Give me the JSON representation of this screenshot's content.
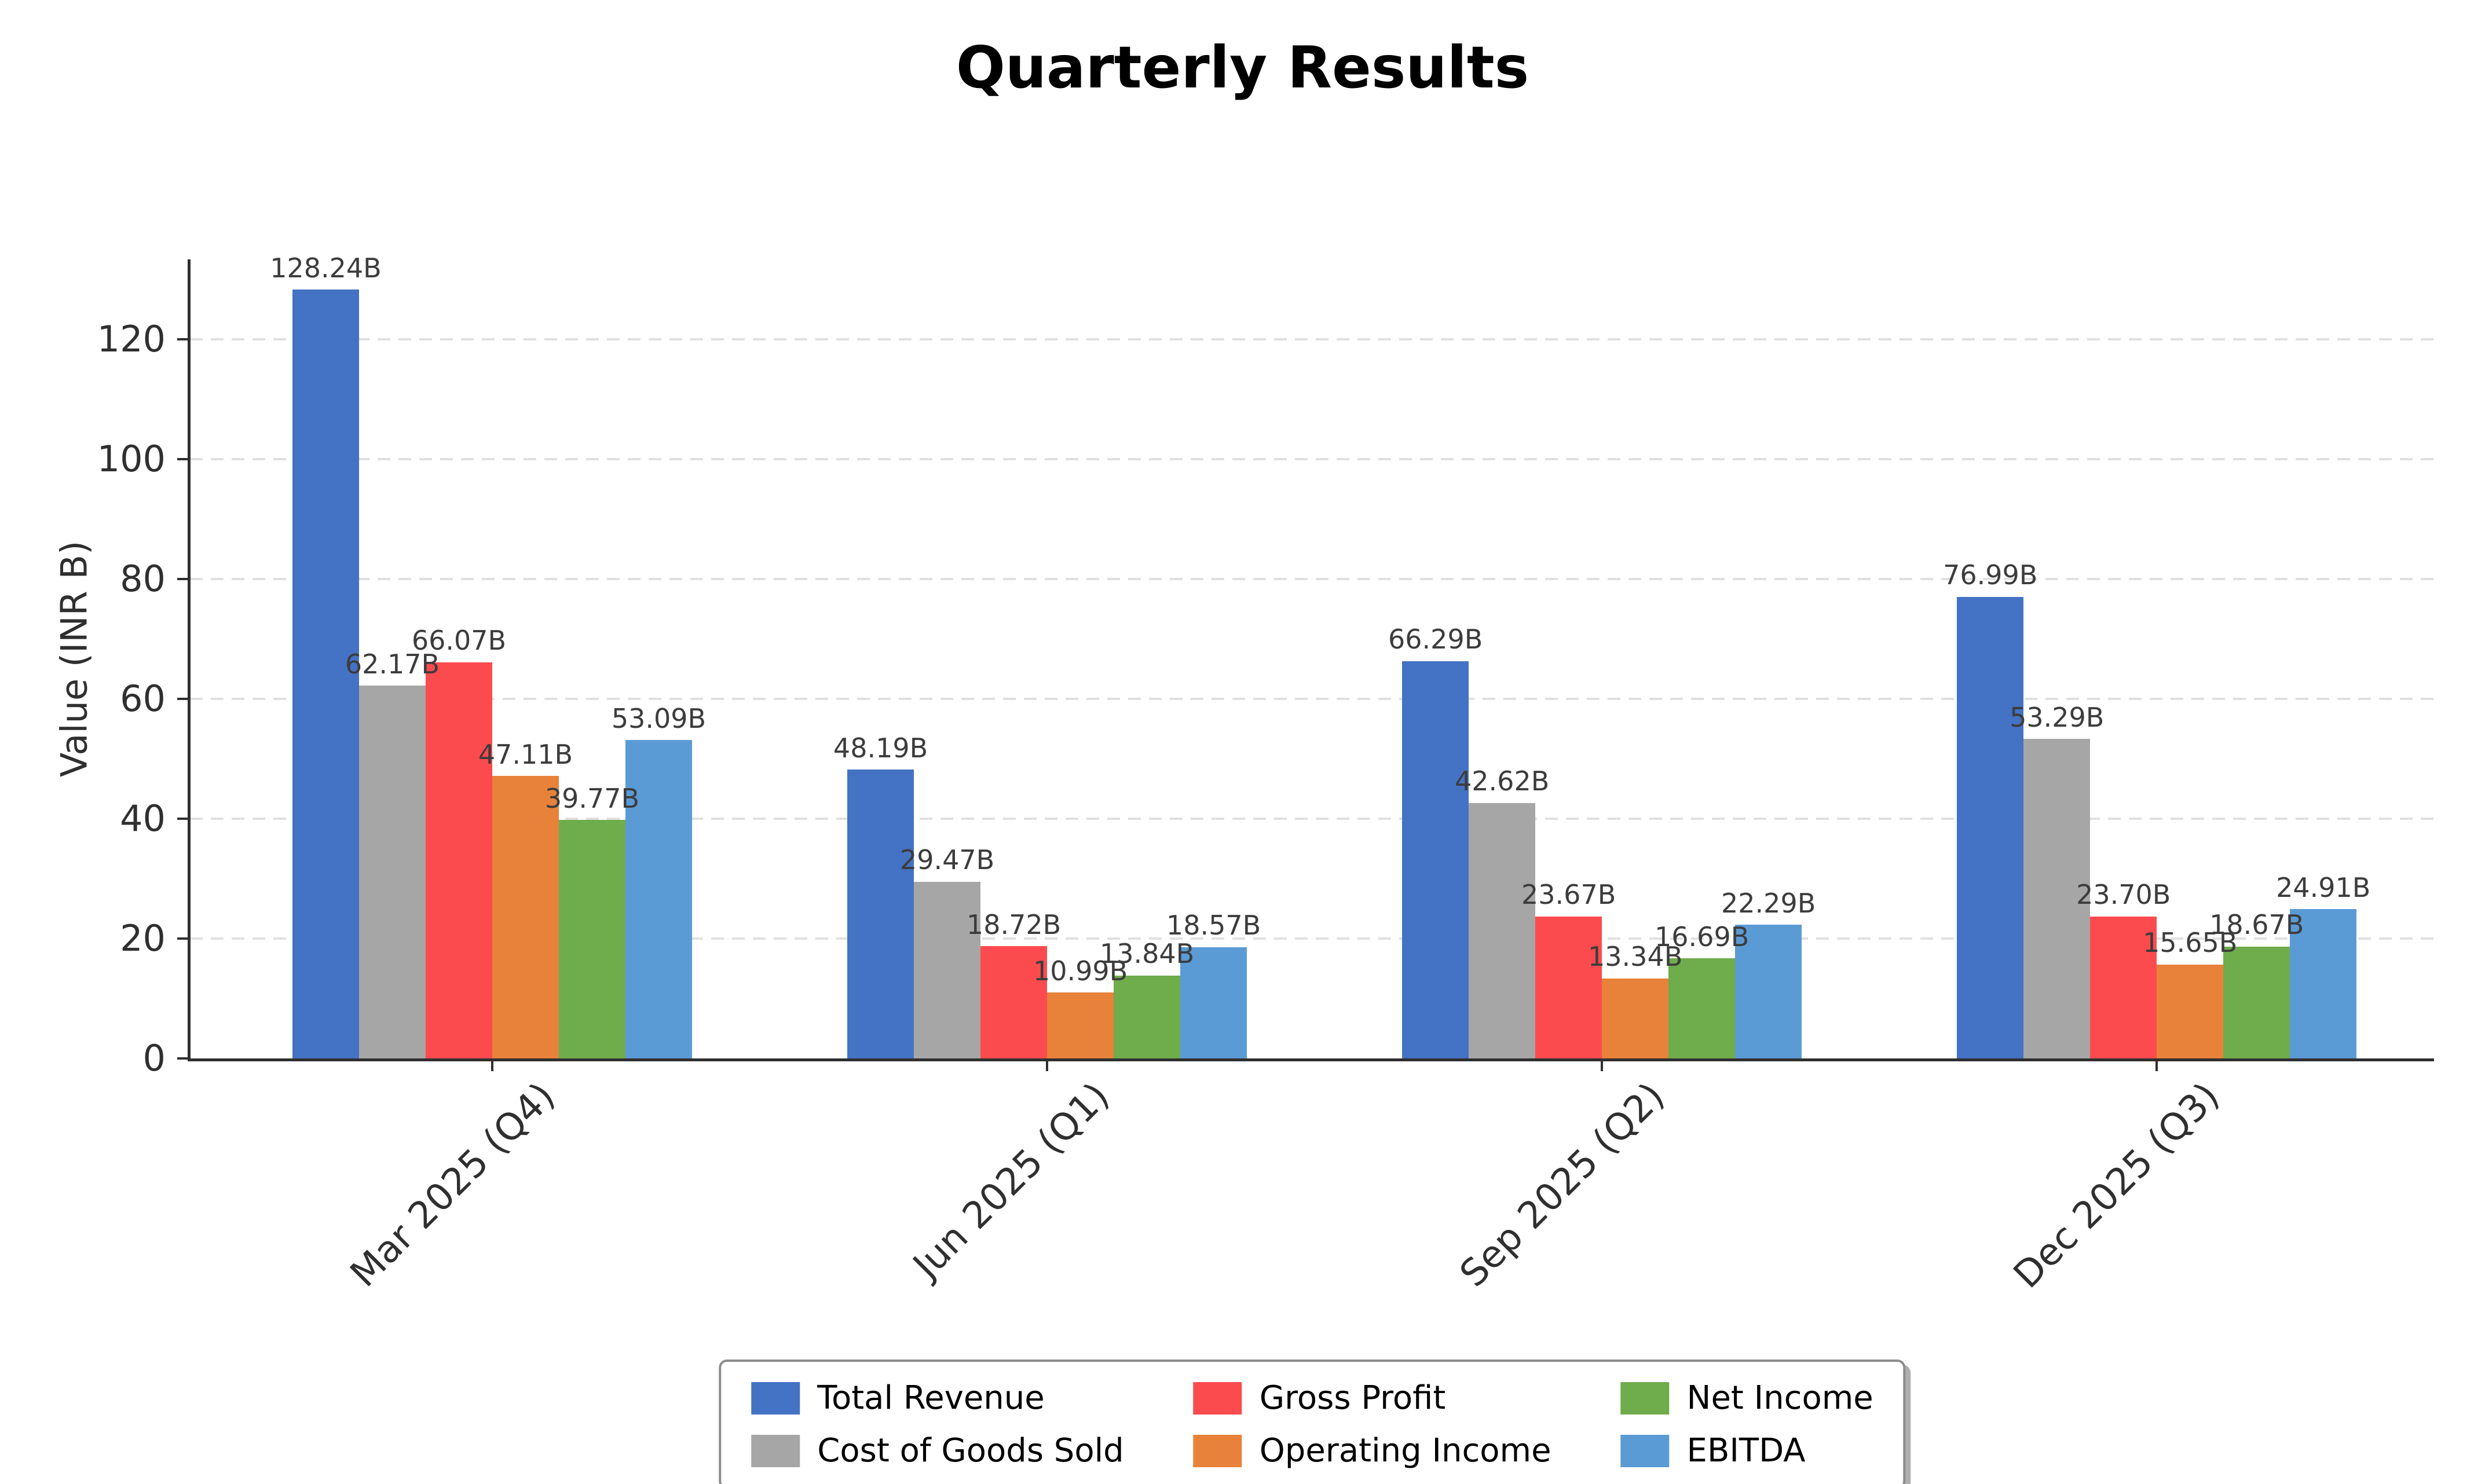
{
  "title": "Quarterly Results",
  "chart_data": {
    "type": "bar",
    "title": "Quarterly Results",
    "ylabel": "Value (INR B)",
    "xlabel": "",
    "categories": [
      "Mar 2025 (Q4)",
      "Jun 2025 (Q1)",
      "Sep 2025 (Q2)",
      "Dec 2025 (Q3)"
    ],
    "series": [
      {
        "name": "Total Revenue",
        "color": "#4472C4",
        "values": [
          128.24,
          48.19,
          66.29,
          76.99
        ]
      },
      {
        "name": "Cost of Goods Sold",
        "color": "#A6A6A6",
        "values": [
          62.17,
          29.47,
          42.62,
          53.29
        ]
      },
      {
        "name": "Gross Profit",
        "color": "#FC4B4F",
        "values": [
          66.07,
          18.72,
          23.67,
          23.7
        ]
      },
      {
        "name": "Operating Income",
        "color": "#E8823A",
        "values": [
          47.11,
          10.99,
          13.34,
          15.65
        ]
      },
      {
        "name": "Net Income",
        "color": "#6FAC4B",
        "values": [
          39.77,
          13.84,
          16.69,
          18.67
        ]
      },
      {
        "name": "EBITDA",
        "color": "#5B9BD5",
        "values": [
          53.09,
          18.57,
          22.29,
          24.91
        ]
      }
    ],
    "value_suffix": "B",
    "value_decimals": 2,
    "yticks": [
      0,
      20,
      40,
      60,
      80,
      100,
      120
    ],
    "ylim": [
      0,
      133.3
    ],
    "grid": "horizontal-dashed",
    "grid_color": "#E0E0E0",
    "axis_color": "#2F2F2F",
    "value_label_color": "#3C3C3C",
    "legend_position": "bottom-center"
  }
}
